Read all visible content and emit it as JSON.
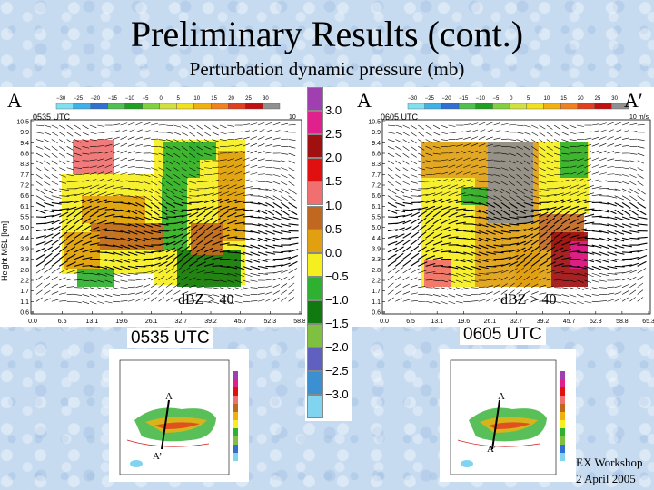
{
  "title": "Preliminary Results (cont.)",
  "subtitle": "Perturbation dynamic pressure (mb)",
  "colorbar": {
    "labels": [
      "3.0",
      "2.5",
      "2.0",
      "1.5",
      "1.0",
      "0.5",
      "0.0",
      "−0.5",
      "−1.0",
      "−1.5",
      "−2.0",
      "−2.5",
      "−3.0"
    ],
    "colors": [
      "#a040b0",
      "#e0208c",
      "#a01010",
      "#e01010",
      "#f07070",
      "#c06820",
      "#e0a010",
      "#f5ef20",
      "#30b030",
      "#107a10",
      "#80c040",
      "#6060c0",
      "#3a90d0",
      "#80d4f0"
    ]
  },
  "panels": {
    "left": {
      "start_label": "A",
      "time_tag": "0535 UTC",
      "dbz_label": "dBZ > 40",
      "caption": "0535 UTC",
      "y_axis_label": "Height MSL [km]",
      "y_ticks": [
        "10.5",
        "9.9",
        "9.4",
        "8.8",
        "8.3",
        "7.7",
        "7.2",
        "6.6",
        "6.1",
        "5.5",
        "5.0",
        "4.4",
        "3.9",
        "3.3",
        "2.8",
        "2.2",
        "1.7",
        "1.1",
        "0.6"
      ],
      "x_ticks": [
        "0.0",
        "6.5",
        "13.1",
        "19.6",
        "26.1",
        "32.7",
        "39.2",
        "45.7",
        "52.3",
        "58.8"
      ],
      "dbz_scale": [
        "−30",
        "−25",
        "−20",
        "−15",
        "−10",
        "−5",
        "0",
        "5",
        "10",
        "15",
        "20",
        "25",
        "30"
      ],
      "vector_ref": "10"
    },
    "right": {
      "start_label": "A",
      "end_label": "A′",
      "time_tag": "0605 UTC",
      "dbz_label": "dBZ > 40",
      "caption": "0605 UTC",
      "y_ticks": [
        "10.5",
        "9.9",
        "9.4",
        "8.8",
        "8.3",
        "7.7",
        "7.2",
        "6.6",
        "6.1",
        "5.5",
        "5.0",
        "4.4",
        "3.9",
        "3.3",
        "2.8",
        "2.2",
        "1.7",
        "1.1",
        "0.6"
      ],
      "x_ticks": [
        "0.0",
        "6.5",
        "13.1",
        "19.6",
        "26.1",
        "32.7",
        "39.2",
        "45.7",
        "52.3",
        "58.8",
        "65.3"
      ],
      "dbz_scale": [
        "−30",
        "−25",
        "−20",
        "−15",
        "−10",
        "−5",
        "0",
        "5",
        "10",
        "15",
        "20",
        "25",
        "30"
      ],
      "vector_ref": "10 m/s"
    }
  },
  "maps": {
    "left": {
      "label_a": "A",
      "label_a_prime": "A’"
    },
    "right": {
      "label_a": "A",
      "label_a_prime": "A’"
    }
  },
  "footer": {
    "workshop": "EX Workshop",
    "date": "2 April 2005"
  }
}
